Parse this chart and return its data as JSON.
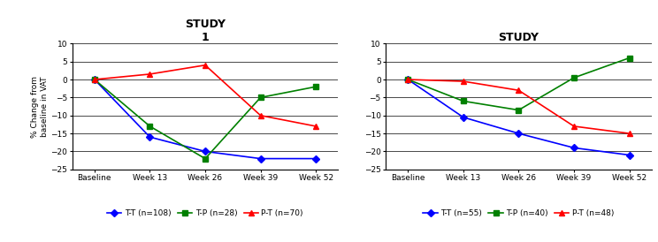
{
  "study1": {
    "title_line1": "STUDY",
    "title_line2": "1",
    "x_labels": [
      "Baseline",
      "Week 13",
      "Week 26",
      "Week 39",
      "Week 52"
    ],
    "TT": {
      "label": "T-T (n=108)",
      "values": [
        0,
        -16,
        -20,
        -22,
        -22
      ],
      "color": "#0000FF",
      "marker": "D"
    },
    "TP": {
      "label": "T-P (n=28)",
      "values": [
        0,
        -13,
        -22,
        -5,
        -2
      ],
      "color": "#008000",
      "marker": "s"
    },
    "PT": {
      "label": "P-T (n=70)",
      "values": [
        0,
        1.5,
        4,
        -10,
        -13
      ],
      "color": "#FF0000",
      "marker": "^"
    }
  },
  "study2": {
    "title_line1": "STUDY",
    "title_line2": "",
    "x_labels": [
      "Baseline",
      "Week 13",
      "Week 26",
      "Week 39",
      "Week 52"
    ],
    "TT": {
      "label": "T-T (n=55)",
      "values": [
        0,
        -10.5,
        -15,
        -19,
        -21
      ],
      "color": "#0000FF",
      "marker": "D"
    },
    "TP": {
      "label": "T-P (n=40)",
      "values": [
        0,
        -6,
        -8.5,
        0.5,
        6
      ],
      "color": "#008000",
      "marker": "s"
    },
    "PT": {
      "label": "P-T (n=48)",
      "values": [
        0,
        -0.5,
        -3,
        -13,
        -15
      ],
      "color": "#FF0000",
      "marker": "^"
    }
  },
  "ylim": [
    -25,
    10
  ],
  "yticks": [
    -25,
    -20,
    -15,
    -10,
    -5,
    0,
    5,
    10
  ],
  "ylabel": "% Change from\nbaseline in VAT",
  "bg_color": "#FFFFFF"
}
